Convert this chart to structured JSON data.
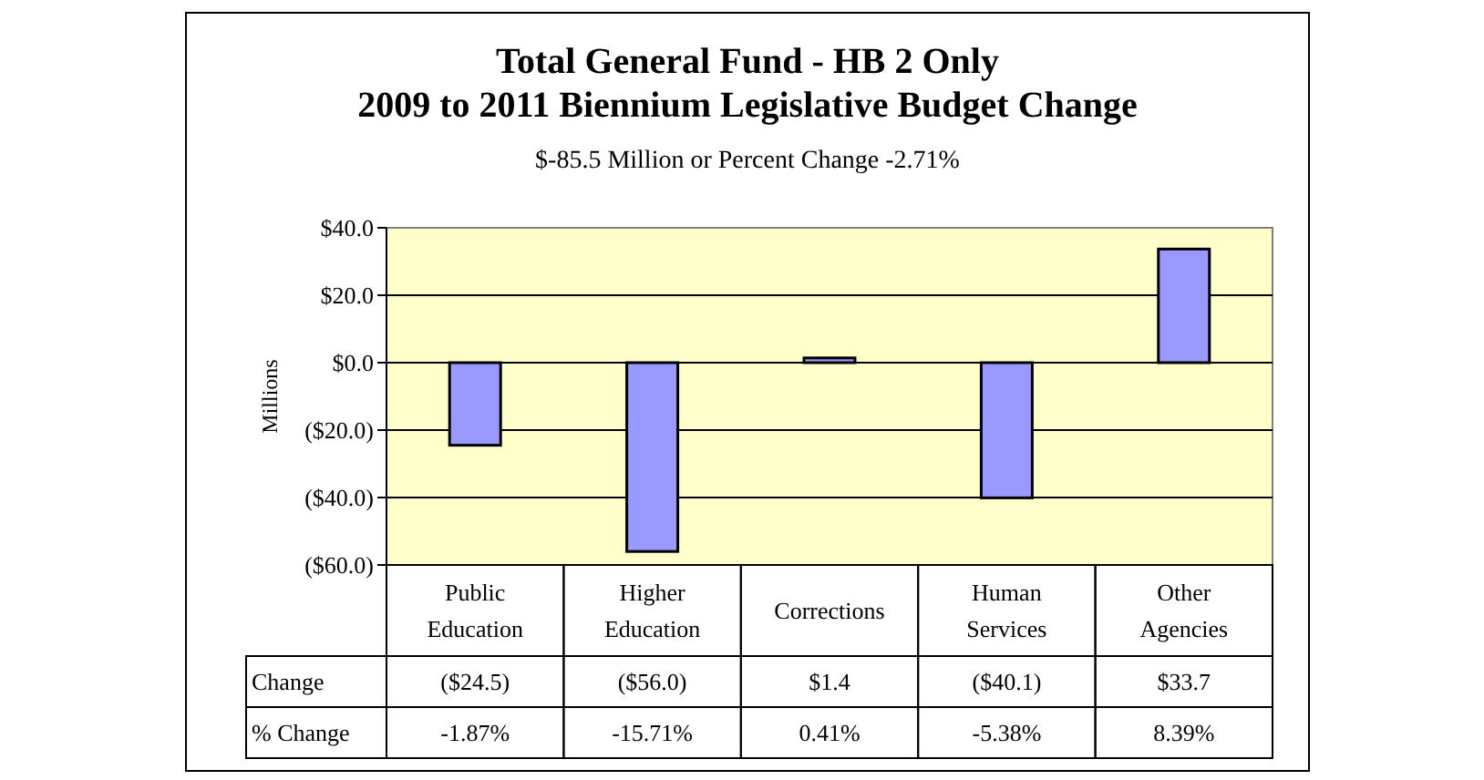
{
  "chart_data": {
    "type": "bar",
    "title": "Total General Fund - HB 2 Only\n2009 to 2011 Biennium Legislative Budget Change",
    "subtitle": "$-85.5 Million or Percent Change -2.71%",
    "ylabel": "Millions",
    "categories": [
      "Public Education",
      "Higher Education",
      "Corrections",
      "Human Services",
      "Other Agencies"
    ],
    "series": [
      {
        "name": "Change",
        "color": "#9999ff",
        "values": [
          -24.5,
          -56.0,
          1.4,
          -40.1,
          33.7
        ],
        "value_labels": [
          "($24.5)",
          "($56.0)",
          "$1.4",
          "($40.1)",
          "$33.7"
        ]
      }
    ],
    "annotations": [
      "% Change",
      "-1.87%",
      "-15.71%",
      "0.41%",
      "-5.38%",
      "8.39%"
    ],
    "ylim": [
      -60,
      40
    ],
    "yticks": [
      {
        "value": -60,
        "label": "($60.0)"
      },
      {
        "value": -40,
        "label": "($40.0)"
      },
      {
        "value": -20,
        "label": "($20.0)"
      },
      {
        "value": 0,
        "label": "$0.0"
      },
      {
        "value": 20,
        "label": "$20.0"
      },
      {
        "value": 40,
        "label": "$40.0"
      }
    ],
    "grid": true,
    "legend": false
  }
}
